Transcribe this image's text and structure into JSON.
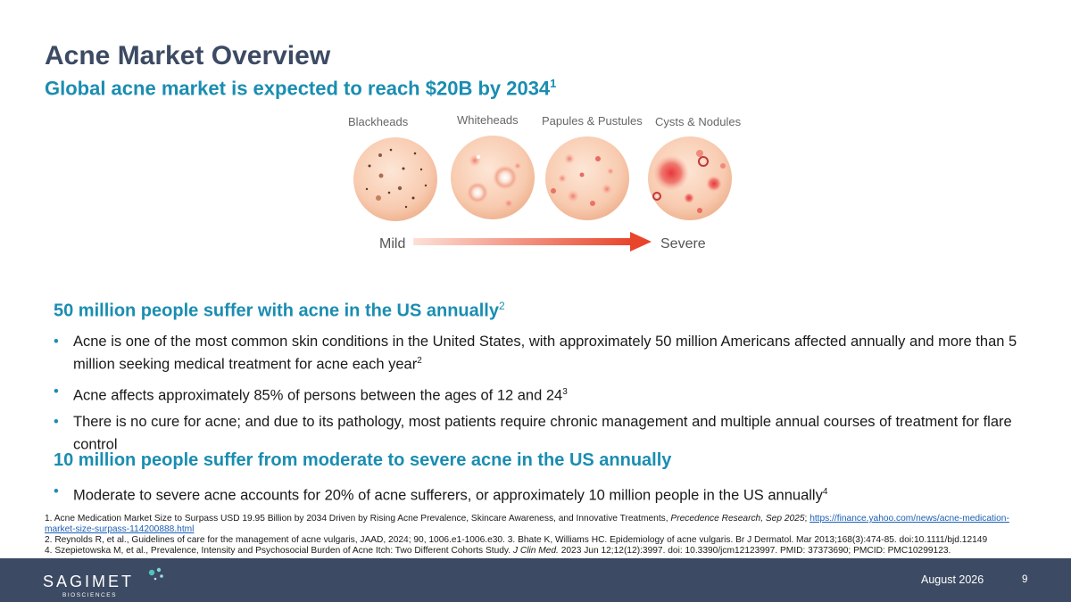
{
  "slide": {
    "title": "Acne Market Overview",
    "subtitle": "Global acne market is expected to reach $20B by 2034",
    "subtitle_ref": "1"
  },
  "figure": {
    "stages": [
      "Blackheads",
      "Whiteheads",
      "Papules & Pustules",
      "Cysts & Nodules"
    ],
    "mild_label": "Mild",
    "severe_label": "Severe"
  },
  "section1": {
    "heading": "50 million people suffer with acne in the US annually",
    "heading_ref": "2",
    "bullets": [
      {
        "text": "Acne is one of the most common skin conditions in the United States, with approximately 50 million Americans affected annually and more than 5 million seeking medical treatment for acne each year",
        "ref": "2"
      },
      {
        "text": "Acne affects approximately 85% of persons between the ages of 12 and 24",
        "ref": "3"
      },
      {
        "text": "There is no cure for acne; and due to its pathology, most patients require chronic management and multiple annual courses of treatment for flare control",
        "ref": ""
      }
    ]
  },
  "section2": {
    "heading": "10 million people suffer from moderate to severe acne in the US annually",
    "bullets": [
      {
        "text": "Moderate to severe acne accounts for 20% of acne sufferers, or approximately 10 million people in the US annually",
        "ref": "4"
      }
    ]
  },
  "footnotes": {
    "fn1_text": "1. Acne Medication Market Size to Surpass USD 19.95 Billion by 2034 Driven by Rising Acne Prevalence, Skincare Awareness, and Innovative Treatments, ",
    "fn1_source": "Precedence Research, Sep 2025",
    "fn1_sep": "; ",
    "fn1_link": "https://finance.yahoo.com/news/acne-medication-market-size-surpass-114200888.html",
    "fn2": "2. Reynolds R, et al., Guidelines of care for the management of acne vulgaris, JAAD, 2024; 90, 1006.e1-1006.e30. 3. Bhate K, Williams HC. Epidemiology of acne vulgaris. Br J Dermatol. Mar 2013;168(3):474-85. doi:10.1111/bjd.12149",
    "fn4_text": "4. Szepietowska M, et al., Prevalence, Intensity and Psychosocial Burden of Acne Itch: Two Different Cohorts Study. ",
    "fn4_journal": "J Clin Med.",
    "fn4_rest": " 2023 Jun 12;12(12):3997. doi: 10.3390/jcm12123997. PMID: 37373690; PMCID: PMC10299123."
  },
  "footer": {
    "logo_word": "SAGIMET",
    "logo_sub": "BIOSCIENCES",
    "date": "August 2026",
    "page": "9"
  },
  "colors": {
    "title": "#3c4a63",
    "accent": "#1a8db1",
    "footer_bg": "#3c4a63",
    "arrow": "#e8452c"
  }
}
